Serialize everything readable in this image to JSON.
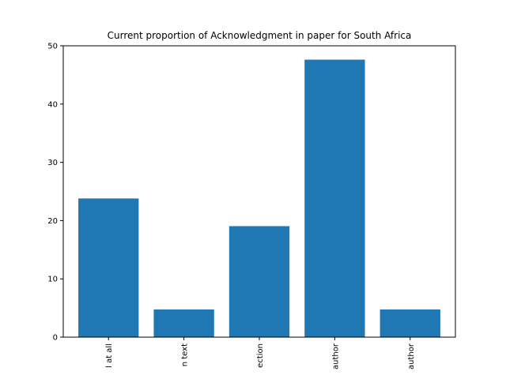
{
  "chart_data": {
    "type": "bar",
    "title": "Current proportion of Acknowledgment in paper for South Africa",
    "xlabel": "",
    "ylabel": "",
    "categories": [
      "l at all",
      "n text",
      "ection",
      "author",
      "author"
    ],
    "values": [
      23.8,
      4.76,
      19.05,
      47.62,
      4.76
    ],
    "ylim": [
      0,
      50
    ],
    "yticks": [
      "0",
      "10",
      "20",
      "30",
      "40",
      "50"
    ],
    "bar_color": "#1f77b4",
    "grid": false,
    "legend": "none"
  }
}
